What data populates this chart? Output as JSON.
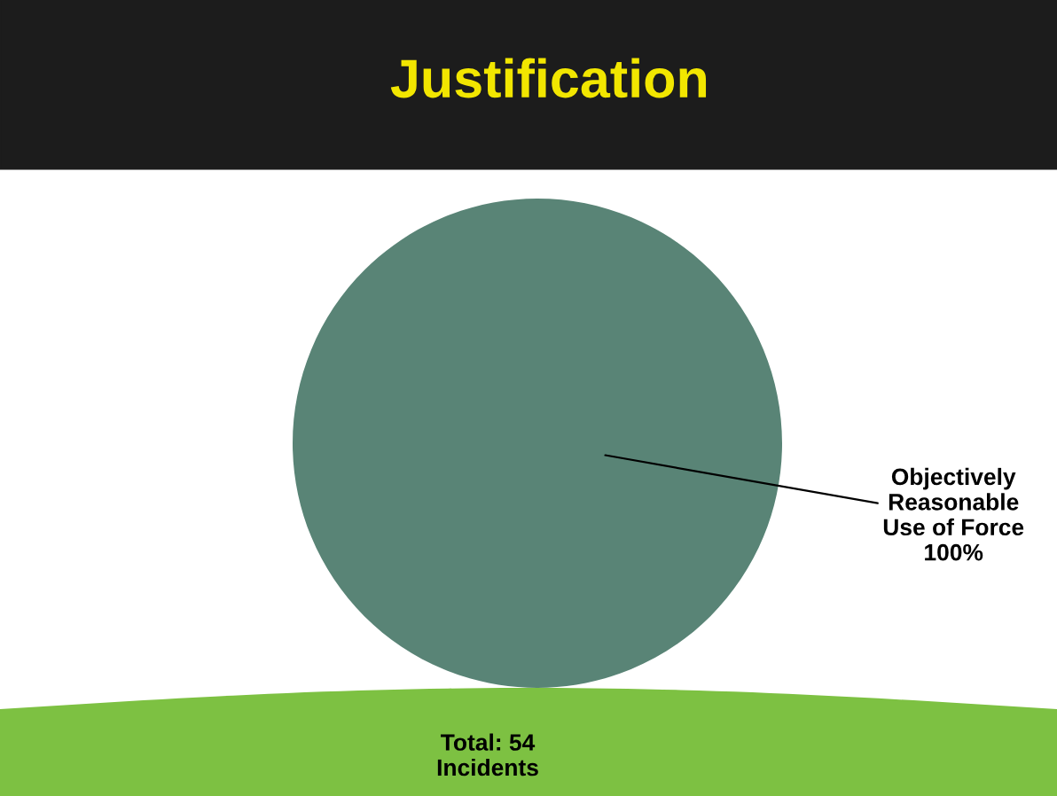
{
  "chart_data": {
    "type": "pie",
    "title": "Justification",
    "categories": [
      "Objectively\nReasonable\nUse of Force"
    ],
    "values": [
      100
    ],
    "colors": [
      "#598476"
    ],
    "value_labels": [
      "100%"
    ],
    "annotations": [
      "Total: 54\nIncidents"
    ]
  }
}
